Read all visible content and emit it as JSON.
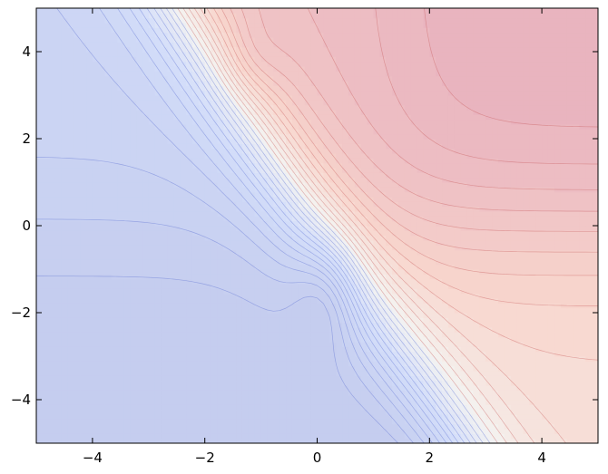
{
  "chart_data": {
    "type": "heatmap",
    "title": "",
    "xlabel": "",
    "ylabel": "",
    "xlim": [
      -5,
      5
    ],
    "ylim": [
      -5,
      5
    ],
    "xticks": [
      -4,
      -2,
      0,
      2,
      4
    ],
    "yticks": [
      -4,
      -2,
      0,
      2,
      4
    ],
    "xtick_labels": [
      "−4",
      "−2",
      "0",
      "2",
      "4"
    ],
    "ytick_labels": [
      "−4",
      "−2",
      "0",
      "2",
      "4"
    ],
    "colormap": "coolwarm",
    "grid": false,
    "legend": "none",
    "colors": {
      "low": "#3b4cc0",
      "mid": "#f2f2f2",
      "high": "#b40426"
    }
  }
}
